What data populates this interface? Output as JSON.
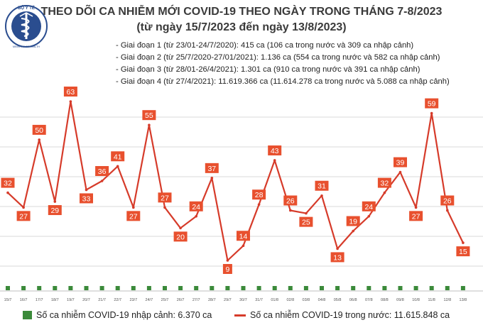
{
  "header": {
    "title": "THEO DÕI CA NHIỄM MỚI COVID-19 THEO NGÀY TRONG THÁNG 7-8/2023",
    "subtitle": "(từ ngày 15/7/2023 đến ngày 13/8/2023)"
  },
  "logo": {
    "text": "BỘ Y TẾ",
    "bottom_text": "MINISTRY OF HEALTH"
  },
  "stages": [
    "- Giai đoạn 1 (từ 23/01-24/7/2020): 415 ca (106 ca trong nước và 309 ca nhập cảnh)",
    "- Giai đoạn 2 (từ 25/7/2020-27/01/2021): 1.136 ca (554 ca trong nước và 582 ca nhập cảnh)",
    "- Giai đoạn 3 (từ 28/01-26/4/2021): 1.301 ca (910 ca trong nước và 391 ca nhập cảnh)",
    "- Giai đoạn 4 (từ 27/4/2021): 11.619.366 ca (11.614.278 ca trong nước và 5.088 ca nhập cảnh)"
  ],
  "legend": {
    "imported": "Số ca nhiễm COVID-19 nhập cảnh: 6.370 ca",
    "domestic": "Số ca nhiễm COVID-19 trong nước: 11.615.848 ca"
  },
  "colors": {
    "domestic": "#d63b2a",
    "imported": "#3b8a3a",
    "label_bg": "#e8502e",
    "grid": "#d9d9d9",
    "title": "#3a3a3a"
  },
  "chart_data": {
    "type": "line",
    "categories": [
      "15/7",
      "16/7",
      "17/7",
      "18/7",
      "19/7",
      "20/7",
      "21/7",
      "22/7",
      "23/7",
      "24/7",
      "25/7",
      "26/7",
      "27/7",
      "28/7",
      "29/7",
      "30/7",
      "31/7",
      "01/8",
      "02/8",
      "03/8",
      "04/8",
      "05/8",
      "06/8",
      "07/8",
      "08/8",
      "09/8",
      "10/8",
      "11/8",
      "12/8",
      "13/8"
    ],
    "series": [
      {
        "key": "domestic",
        "values": [
          32,
          27,
          50,
          29,
          63,
          33,
          36,
          41,
          27,
          55,
          27,
          20,
          24,
          37,
          9,
          14,
          28,
          43,
          26,
          25,
          31,
          13,
          19,
          24,
          32,
          39,
          27,
          59,
          26,
          15
        ]
      },
      {
        "key": "imported",
        "values": [
          0,
          0,
          0,
          0,
          0,
          0,
          0,
          0,
          0,
          0,
          0,
          0,
          0,
          0,
          0,
          0,
          0,
          0,
          0,
          0,
          0,
          0,
          0,
          0,
          0,
          0,
          0,
          0,
          0,
          0
        ]
      }
    ],
    "gridlines": true,
    "legend_position": "bottom"
  }
}
